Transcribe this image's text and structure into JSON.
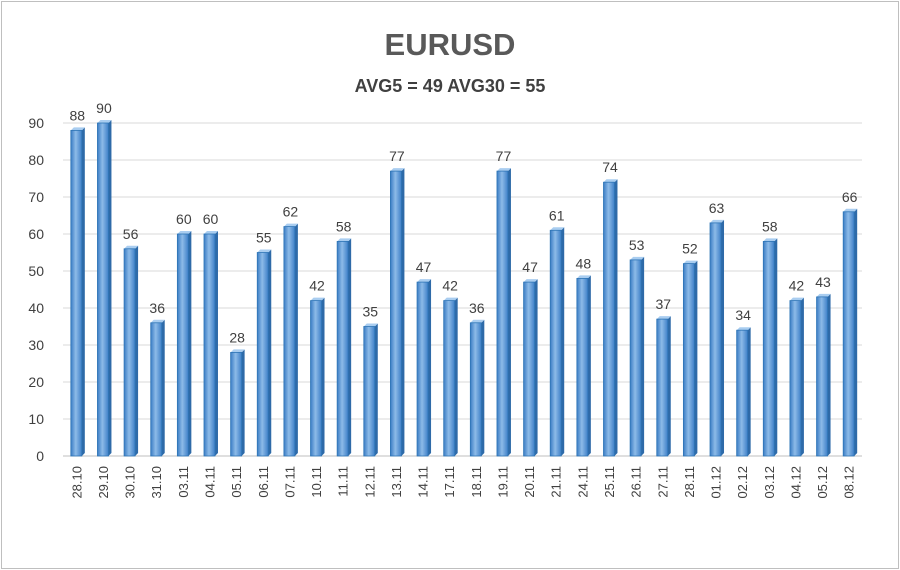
{
  "chart_data": {
    "type": "bar",
    "title": "EURUSD",
    "subtitle": "AVG5 = 49 AVG30 = 55",
    "categories": [
      "28.10",
      "29.10",
      "30.10",
      "31.10",
      "03.11",
      "04.11",
      "05.11",
      "06.11",
      "07.11",
      "10.11",
      "11.11",
      "12.11",
      "13.11",
      "14.11",
      "17.11",
      "18.11",
      "19.11",
      "20.11",
      "21.11",
      "24.11",
      "25.11",
      "26.11",
      "27.11",
      "28.11",
      "01.12",
      "02.12",
      "03.12",
      "04.12",
      "05.12",
      "08.12"
    ],
    "values": [
      88,
      90,
      56,
      36,
      60,
      60,
      28,
      55,
      62,
      42,
      58,
      35,
      77,
      47,
      42,
      36,
      77,
      47,
      61,
      48,
      74,
      53,
      37,
      52,
      63,
      34,
      58,
      42,
      43,
      66
    ],
    "yticks": [
      0,
      10,
      20,
      30,
      40,
      50,
      60,
      70,
      80,
      90
    ],
    "ylim": [
      0,
      90
    ],
    "xlabel": "",
    "ylabel": "",
    "grid": true,
    "legend": "none",
    "bar_color": "#5b9bd5",
    "bar_edge_color": "#2e75b6"
  }
}
